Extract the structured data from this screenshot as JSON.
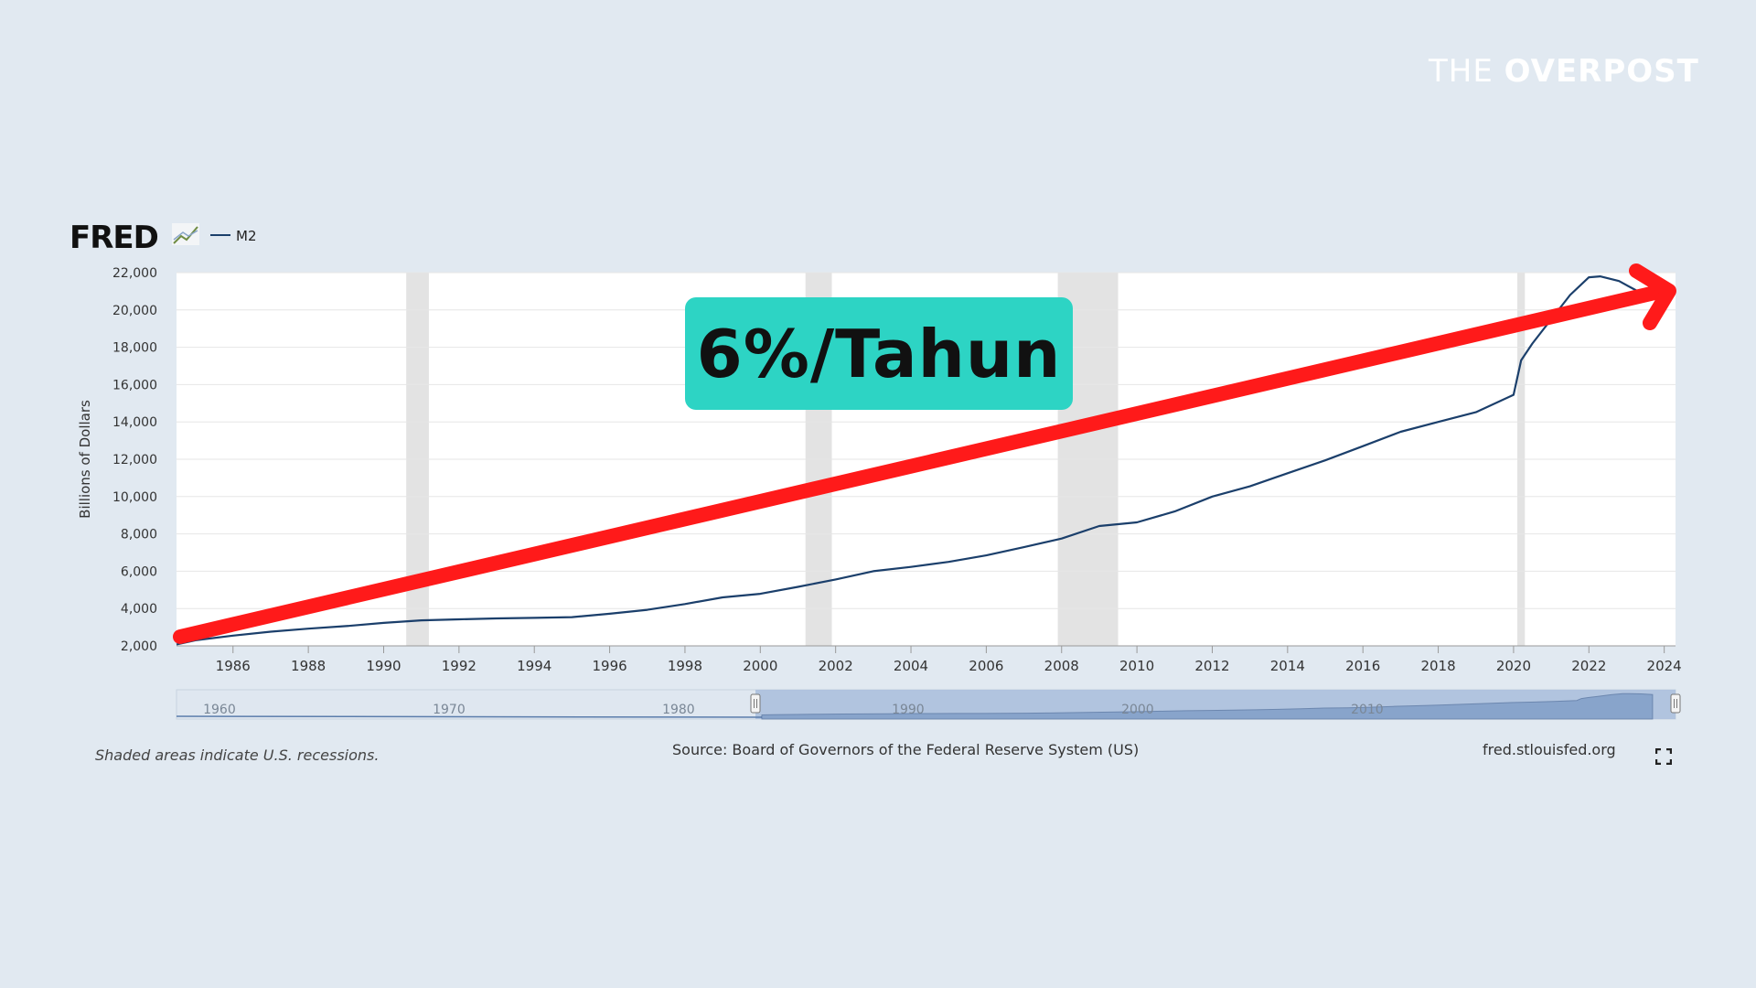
{
  "brand": {
    "prefix": "THE",
    "name": "OVERPOST"
  },
  "logo": {
    "text": "FRED"
  },
  "headline": "6%/Tahun",
  "footer": {
    "recession_note": "Shaded areas indicate U.S. recessions.",
    "source": "Source: Board of Governors of the Federal Reserve System (US)",
    "site": "fred.stlouisfed.org"
  },
  "colors": {
    "series": "#1b3f6b",
    "arrow": "#ff1a1a",
    "recession": "#e3e3e3",
    "headline_bg": "#2dd4c4",
    "navigator": "#a9bddc"
  },
  "chart_data": {
    "type": "line",
    "legend": "M2",
    "ylabel": "Billions of Dollars",
    "ylim": [
      2000,
      22000
    ],
    "xlim": [
      1984.5,
      2024.3
    ],
    "yticks": [
      "2,000",
      "4,000",
      "6,000",
      "8,000",
      "10,000",
      "12,000",
      "14,000",
      "16,000",
      "18,000",
      "20,000",
      "22,000"
    ],
    "xticks": [
      "1986",
      "1988",
      "1990",
      "1992",
      "1994",
      "1996",
      "1998",
      "2000",
      "2002",
      "2004",
      "2006",
      "2008",
      "2010",
      "2012",
      "2014",
      "2016",
      "2018",
      "2020",
      "2022",
      "2024"
    ],
    "recessions": [
      [
        1990.6,
        1991.2
      ],
      [
        2001.2,
        2001.9
      ],
      [
        2007.9,
        2009.5
      ],
      [
        2020.1,
        2020.3
      ]
    ],
    "series": [
      {
        "name": "M2",
        "x": [
          1984.5,
          1985,
          1986,
          1987,
          1988,
          1989,
          1990,
          1991,
          1992,
          1993,
          1994,
          1995,
          1996,
          1997,
          1998,
          1999,
          2000,
          2001,
          2002,
          2003,
          2004,
          2005,
          2006,
          2007,
          2008,
          2009,
          2010,
          2011,
          2012,
          2013,
          2014,
          2015,
          2016,
          2017,
          2018,
          2019,
          2020.0,
          2020.2,
          2020.5,
          2021,
          2021.5,
          2022,
          2022.3,
          2022.8,
          2023.3
        ],
        "y": [
          2080,
          2300,
          2550,
          2760,
          2920,
          3060,
          3230,
          3370,
          3420,
          3470,
          3500,
          3540,
          3720,
          3930,
          4240,
          4600,
          4790,
          5160,
          5560,
          6000,
          6230,
          6500,
          6850,
          7290,
          7750,
          8420,
          8620,
          9200,
          10000,
          10550,
          11250,
          11940,
          12700,
          13470,
          14000,
          14520,
          15450,
          17300,
          18200,
          19500,
          20800,
          21750,
          21800,
          21550,
          21000
        ]
      }
    ],
    "navigator": {
      "labels": [
        "1960",
        "1970",
        "1980",
        "1990",
        "2000",
        "2010"
      ]
    }
  }
}
